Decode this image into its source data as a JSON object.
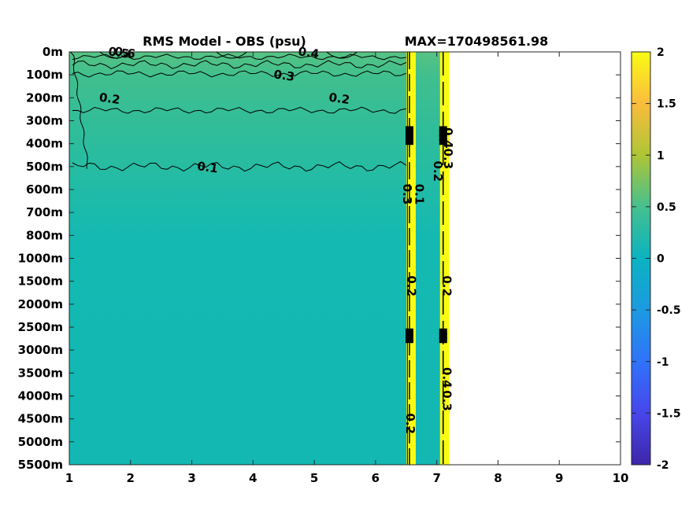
{
  "chart_data": {
    "type": "heatmap",
    "title": "RMS Model - OBS (psu)",
    "subtitle": "MAX=170498561.98",
    "xlabel": "",
    "ylabel": "",
    "x_ticks": [
      "1",
      "2",
      "3",
      "4",
      "5",
      "6",
      "7",
      "8",
      "9",
      "10"
    ],
    "xlim": [
      1,
      10
    ],
    "y_ticks": [
      "0m",
      "100m",
      "200m",
      "300m",
      "400m",
      "500m",
      "600m",
      "700m",
      "800m",
      "1000m",
      "1500m",
      "2000m",
      "2500m",
      "3000m",
      "3500m",
      "4000m",
      "4500m",
      "5000m",
      "5500m"
    ],
    "colorbar": {
      "ticks": [
        "2",
        "1.5",
        "1",
        "0.5",
        "0",
        "-0.5",
        "-1",
        "-1.5",
        "-2"
      ],
      "range": [
        -2,
        2
      ],
      "colormap": "parula"
    },
    "data_extent_x": [
      1,
      7.15
    ],
    "high_value_columns_x": [
      6.58,
      7.13
    ],
    "contour_levels": [
      0.1,
      0.2,
      0.3,
      0.4,
      0.5,
      0.6
    ],
    "contour_labels": [
      {
        "text": "0.6",
        "x": 1.9,
        "y": "0m"
      },
      {
        "text": "0.5",
        "x": 1.8,
        "y": "0m"
      },
      {
        "text": "0.4",
        "x": 4.9,
        "y": "0m"
      },
      {
        "text": "0.3",
        "x": 4.5,
        "y": "100m"
      },
      {
        "text": "0.2",
        "x": 1.65,
        "y": "200m"
      },
      {
        "text": "0.2",
        "x": 5.4,
        "y": "200m"
      },
      {
        "text": "0.1",
        "x": 3.25,
        "y": "500m"
      },
      {
        "text": "0.2",
        "x": 6.95,
        "y": "500m"
      },
      {
        "text": "0.1",
        "x": 6.65,
        "y": "600m"
      },
      {
        "text": "0.3",
        "x": 6.45,
        "y": "600m"
      },
      {
        "text": "0.40.3",
        "x": 7.12,
        "y": "400m"
      },
      {
        "text": "0.2",
        "x": 6.52,
        "y": "1500m"
      },
      {
        "text": "0.2",
        "x": 7.1,
        "y": "1500m"
      },
      {
        "text": "0.4",
        "x": 7.1,
        "y": "3500m"
      },
      {
        "text": "0.3",
        "x": 7.1,
        "y": "4000m"
      },
      {
        "text": "0.2",
        "x": 6.5,
        "y": "4500m"
      }
    ],
    "background_value": 0.05,
    "grid": false
  }
}
